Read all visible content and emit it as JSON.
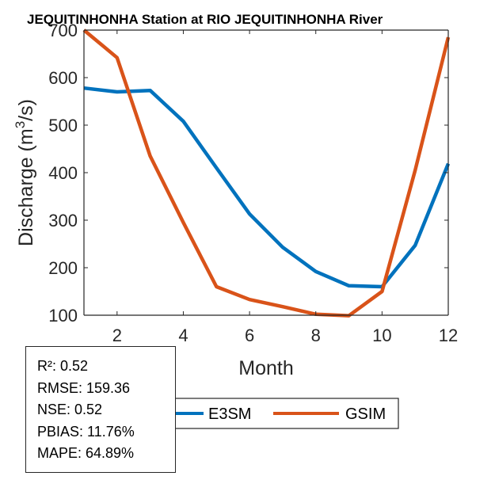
{
  "chart_data": {
    "type": "line",
    "title": "JEQUITINHONHA  Station at  RIO JEQUITINHONHA  River",
    "xlabel": "Month",
    "ylabel": "Discharge (m³/s)",
    "ylabel_parts": {
      "before": "Discharge (m",
      "sup": "3",
      "after": "/s)"
    },
    "xlim": [
      1,
      12
    ],
    "ylim": [
      100,
      700
    ],
    "xticks": [
      2,
      4,
      6,
      8,
      10,
      12
    ],
    "yticks": [
      100,
      200,
      300,
      400,
      500,
      600,
      700
    ],
    "grid": false,
    "x": [
      1,
      2,
      3,
      4,
      5,
      6,
      7,
      8,
      9,
      10,
      11,
      12
    ],
    "series": [
      {
        "name": "E3SM",
        "color": "#0072BD",
        "values": [
          578,
          570,
          573,
          508,
          410,
          313,
          243,
          192,
          162,
          160,
          247,
          419
        ]
      },
      {
        "name": "GSIM",
        "color": "#D95319",
        "values": [
          700,
          642,
          435,
          295,
          160,
          133,
          118,
          102,
          99,
          150,
          405,
          685
        ]
      }
    ],
    "legend": {
      "placement": "bottom",
      "orientation": "horizontal",
      "entries": [
        "E3SM",
        "GSIM"
      ]
    },
    "annotation": {
      "lines": [
        "R²: 0.52",
        "RMSE: 159.36",
        "NSE: 0.52",
        "PBIAS: 11.76%",
        "MAPE: 64.89%"
      ]
    }
  }
}
